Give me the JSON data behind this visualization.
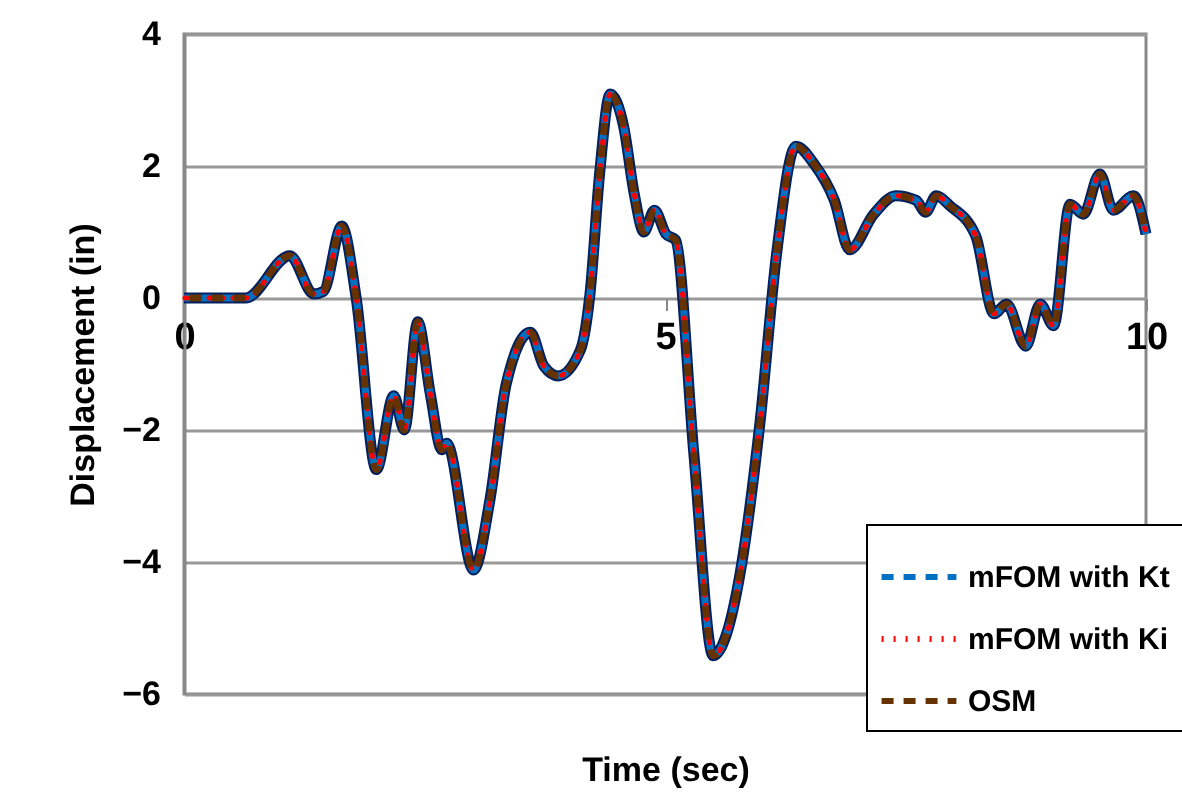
{
  "chart_data": {
    "type": "line",
    "xlabel": "Time (sec)",
    "ylabel": "Displacement (in)",
    "x": [
      0,
      0.64,
      1.1,
      1.35,
      1.45,
      1.64,
      1.79,
      2.0,
      2.18,
      2.29,
      2.43,
      2.56,
      2.68,
      2.73,
      3.01,
      3.18,
      3.35,
      3.6,
      3.74,
      3.89,
      4.12,
      4.22,
      4.32,
      4.43,
      4.57,
      4.68,
      4.78,
      4.89,
      5.01,
      5.11,
      5.3,
      5.5,
      5.64,
      5.78,
      5.99,
      6.16,
      6.36,
      6.55,
      6.76,
      6.92,
      7.17,
      7.4,
      7.61,
      7.71,
      7.82,
      7.96,
      8.23,
      8.42,
      8.55,
      8.75,
      8.9,
      9.04,
      9.21,
      9.35,
      9.52,
      9.66,
      9.87,
      10.0
    ],
    "series": [
      {
        "color": "#002060",
        "line_style": "solid",
        "values": [
          0,
          0,
          0.64,
          0.06,
          0.1,
          1.09,
          0,
          -2.6,
          -1.48,
          -2.0,
          -0.36,
          -1.45,
          -2.3,
          -2.2,
          -4.12,
          -3.06,
          -1.3,
          -0.52,
          -1.03,
          -1.18,
          -0.79,
          0.06,
          1.88,
          3.09,
          2.6,
          1.58,
          1.0,
          1.33,
          0.97,
          0.88,
          -2.36,
          -5.42,
          -5.09,
          -4.18,
          -1.85,
          0.67,
          2.3,
          2.03,
          1.48,
          0.73,
          1.27,
          1.55,
          1.48,
          1.3,
          1.55,
          1.4,
          0.94,
          -0.24,
          -0.09,
          -0.73,
          -0.09,
          -0.42,
          1.42,
          1.27,
          1.88,
          1.33,
          1.55,
          0.97
        ]
      },
      {
        "name": "mFOM with Kt",
        "color": "#0070c0",
        "line_style": "dashed",
        "values": [
          0,
          0,
          0.64,
          0.06,
          0.1,
          1.09,
          0,
          -2.6,
          -1.48,
          -2.0,
          -0.36,
          -1.45,
          -2.3,
          -2.2,
          -4.12,
          -3.06,
          -1.3,
          -0.52,
          -1.03,
          -1.18,
          -0.79,
          0.06,
          1.88,
          3.09,
          2.6,
          1.58,
          1.0,
          1.33,
          0.97,
          0.88,
          -2.36,
          -5.42,
          -5.09,
          -4.18,
          -1.85,
          0.67,
          2.3,
          2.03,
          1.48,
          0.73,
          1.27,
          1.55,
          1.48,
          1.3,
          1.55,
          1.4,
          0.94,
          -0.24,
          -0.09,
          -0.73,
          -0.09,
          -0.42,
          1.42,
          1.27,
          1.88,
          1.33,
          1.55,
          0.97
        ]
      },
      {
        "name": "mFOM with Ki",
        "color": "#ff0000",
        "line_style": "dotted",
        "values": [
          0,
          0,
          0.64,
          0.06,
          0.1,
          1.09,
          0,
          -2.6,
          -1.48,
          -2.0,
          -0.36,
          -1.45,
          -2.3,
          -2.2,
          -4.12,
          -3.06,
          -1.3,
          -0.52,
          -1.03,
          -1.18,
          -0.79,
          0.06,
          1.88,
          3.09,
          2.6,
          1.58,
          1.0,
          1.33,
          0.97,
          0.88,
          -2.36,
          -5.42,
          -5.09,
          -4.18,
          -1.85,
          0.67,
          2.3,
          2.03,
          1.48,
          0.73,
          1.27,
          1.55,
          1.48,
          1.3,
          1.55,
          1.4,
          0.94,
          -0.24,
          -0.09,
          -0.73,
          -0.09,
          -0.42,
          1.42,
          1.27,
          1.88,
          1.33,
          1.55,
          0.97
        ]
      },
      {
        "name": "OSM",
        "color": "#663300",
        "line_style": "dashed",
        "values": [
          0,
          0,
          0.64,
          0.06,
          0.1,
          1.09,
          0,
          -2.6,
          -1.48,
          -2.0,
          -0.36,
          -1.45,
          -2.3,
          -2.2,
          -4.12,
          -3.06,
          -1.3,
          -0.52,
          -1.03,
          -1.18,
          -0.79,
          0.06,
          1.88,
          3.09,
          2.6,
          1.58,
          1.0,
          1.33,
          0.97,
          0.88,
          -2.36,
          -5.42,
          -5.09,
          -4.18,
          -1.85,
          0.67,
          2.3,
          2.03,
          1.48,
          0.73,
          1.27,
          1.55,
          1.48,
          1.3,
          1.55,
          1.4,
          0.94,
          -0.24,
          -0.09,
          -0.73,
          -0.09,
          -0.42,
          1.42,
          1.27,
          1.88,
          1.33,
          1.55,
          0.97
        ]
      }
    ],
    "xlim": [
      0,
      10
    ],
    "xticks": [
      0,
      5,
      10
    ],
    "ylim": [
      -6,
      4
    ],
    "yticks": [
      -6,
      -4,
      -2,
      0,
      2,
      4
    ],
    "grid": "y",
    "legend": "bottom right",
    "marker": "none"
  }
}
